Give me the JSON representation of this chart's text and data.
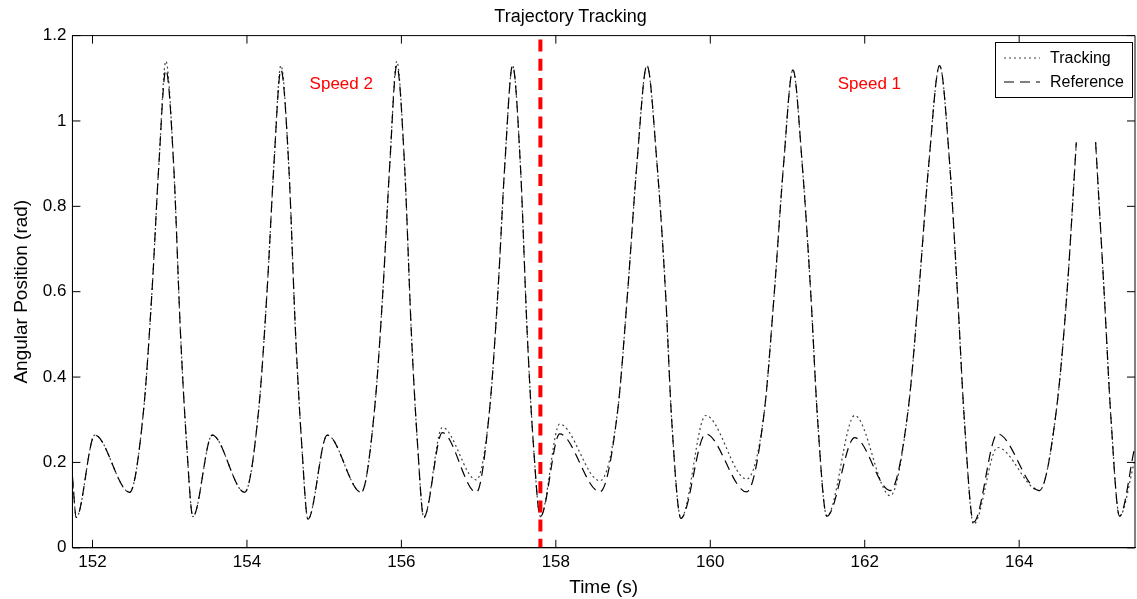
{
  "chart_data": {
    "type": "line",
    "title": "Trajectory Tracking",
    "xlabel": "Time (s)",
    "ylabel": "Angular Position (rad)",
    "xlim": [
      151.74,
      165.5
    ],
    "xticks": [
      152,
      154,
      156,
      158,
      160,
      162,
      164
    ],
    "ylim": [
      0,
      1.2
    ],
    "yticks": [
      0,
      0.2,
      0.4,
      0.6,
      0.8,
      1,
      1.2
    ],
    "grid": false,
    "legend": "top right",
    "marker": "none",
    "x": [
      151.74,
      151.79,
      152.03,
      152.48,
      152.66,
      152.77,
      152.86,
      152.95,
      153.05,
      153.14,
      153.22,
      153.3,
      153.55,
      153.97,
      154.15,
      154.26,
      154.35,
      154.44,
      154.54,
      154.63,
      154.71,
      154.79,
      155.04,
      155.48,
      155.65,
      155.76,
      155.85,
      155.94,
      156.04,
      156.13,
      156.21,
      156.29,
      156.53,
      156.97,
      157.14,
      157.25,
      157.34,
      157.44,
      157.54,
      157.63,
      157.71,
      157.8,
      158.05,
      158.57,
      158.8,
      158.93,
      159.05,
      159.18,
      159.31,
      159.42,
      159.5,
      159.62,
      159.94,
      160.47,
      160.7,
      160.83,
      160.95,
      161.07,
      161.19,
      161.3,
      161.39,
      161.51,
      161.87,
      162.33,
      162.56,
      162.7,
      162.83,
      162.97,
      163.1,
      163.2,
      163.29,
      163.41,
      163.72,
      164.26,
      164.48,
      164.62,
      164.74,
      164.86,
      164.99,
      165.1,
      165.19,
      165.3,
      165.49
    ],
    "series": [
      {
        "name": "Tracking",
        "color": "#404040",
        "line_style": "dotted",
        "values": [
          0.167,
          0.071,
          0.264,
          0.13,
          0.32,
          0.6,
          0.9,
          1.14,
          0.9,
          0.5,
          0.24,
          0.073,
          0.264,
          0.13,
          0.32,
          0.6,
          0.9,
          1.13,
          0.9,
          0.5,
          0.24,
          0.067,
          0.264,
          0.13,
          0.32,
          0.6,
          0.9,
          1.14,
          0.9,
          0.5,
          0.24,
          0.071,
          0.282,
          0.159,
          0.32,
          0.6,
          0.9,
          1.13,
          0.9,
          0.5,
          0.24,
          0.073,
          0.29,
          0.157,
          0.32,
          0.6,
          0.9,
          1.13,
          0.9,
          0.6,
          0.3,
          0.069,
          0.31,
          0.161,
          0.32,
          0.6,
          0.9,
          1.12,
          0.9,
          0.6,
          0.3,
          0.074,
          0.31,
          0.122,
          0.32,
          0.6,
          0.9,
          1.13,
          0.9,
          0.6,
          0.3,
          0.055,
          0.235,
          0.134,
          0.32,
          0.6,
          0.95,
          null,
          0.95,
          0.6,
          0.3,
          0.074,
          0.2
        ]
      },
      {
        "name": "Reference",
        "color": "#000000",
        "line_style": "dashed",
        "values": [
          0.167,
          0.071,
          0.264,
          0.13,
          0.32,
          0.6,
          0.9,
          1.12,
          0.9,
          0.5,
          0.24,
          0.073,
          0.264,
          0.13,
          0.32,
          0.6,
          0.9,
          1.12,
          0.9,
          0.5,
          0.24,
          0.067,
          0.264,
          0.13,
          0.32,
          0.6,
          0.9,
          1.13,
          0.9,
          0.5,
          0.24,
          0.071,
          0.27,
          0.13,
          0.32,
          0.6,
          0.9,
          1.13,
          0.9,
          0.5,
          0.24,
          0.073,
          0.267,
          0.131,
          0.32,
          0.6,
          0.9,
          1.13,
          0.9,
          0.6,
          0.3,
          0.069,
          0.267,
          0.131,
          0.32,
          0.6,
          0.9,
          1.12,
          0.9,
          0.6,
          0.3,
          0.074,
          0.258,
          0.134,
          0.32,
          0.6,
          0.9,
          1.13,
          0.9,
          0.6,
          0.3,
          0.06,
          0.267,
          0.134,
          0.32,
          0.6,
          0.95,
          null,
          0.95,
          0.6,
          0.3,
          0.074,
          0.23
        ]
      }
    ],
    "ref_lines": [
      {
        "axis": "x",
        "value": 157.8,
        "color": "#ff0000",
        "line_style": "dashed"
      }
    ],
    "annotations": [
      "Speed 2",
      "Speed 1"
    ]
  }
}
